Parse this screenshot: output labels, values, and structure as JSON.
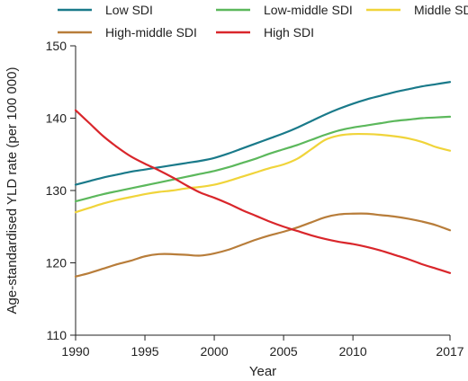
{
  "chart_data": {
    "type": "line",
    "xlabel": "Year",
    "ylabel": "Age-standardised YLD rate (per 100 000)",
    "xlim": [
      1990,
      2017
    ],
    "ylim": [
      110,
      150
    ],
    "xticks": [
      1990,
      1995,
      2000,
      2005,
      2010,
      2017
    ],
    "yticks": [
      110,
      120,
      130,
      140,
      150
    ],
    "grid": false,
    "legend_position": "top",
    "x": [
      1990,
      1991,
      1992,
      1993,
      1994,
      1995,
      1996,
      1997,
      1998,
      1999,
      2000,
      2001,
      2002,
      2003,
      2004,
      2005,
      2006,
      2007,
      2008,
      2009,
      2010,
      2011,
      2012,
      2013,
      2014,
      2015,
      2016,
      2017
    ],
    "series": [
      {
        "name": "Low SDI",
        "color": "#1a7a8a",
        "values": [
          130.8,
          131.3,
          131.8,
          132.2,
          132.6,
          132.9,
          133.2,
          133.5,
          133.8,
          134.1,
          134.5,
          135.1,
          135.8,
          136.5,
          137.2,
          137.9,
          138.7,
          139.6,
          140.5,
          141.3,
          142.0,
          142.6,
          143.1,
          143.6,
          144.0,
          144.4,
          144.7,
          145.0
        ]
      },
      {
        "name": "Low-middle SDI",
        "color": "#5cb85c",
        "values": [
          128.5,
          129.0,
          129.5,
          129.9,
          130.3,
          130.7,
          131.1,
          131.5,
          131.9,
          132.3,
          132.7,
          133.2,
          133.8,
          134.4,
          135.1,
          135.7,
          136.3,
          137.0,
          137.7,
          138.3,
          138.7,
          139.0,
          139.3,
          139.6,
          139.8,
          140.0,
          140.1,
          140.2
        ]
      },
      {
        "name": "Middle SDI",
        "color": "#f0d43a",
        "values": [
          127.0,
          127.6,
          128.2,
          128.7,
          129.1,
          129.5,
          129.8,
          130.0,
          130.3,
          130.5,
          130.8,
          131.3,
          131.9,
          132.5,
          133.1,
          133.6,
          134.4,
          135.7,
          137.0,
          137.6,
          137.8,
          137.8,
          137.7,
          137.5,
          137.2,
          136.7,
          136.0,
          135.5
        ]
      },
      {
        "name": "High-middle SDI",
        "color": "#b87d3a",
        "values": [
          118.1,
          118.6,
          119.2,
          119.8,
          120.3,
          120.9,
          121.2,
          121.2,
          121.1,
          121.0,
          121.3,
          121.8,
          122.5,
          123.2,
          123.8,
          124.3,
          124.9,
          125.6,
          126.3,
          126.7,
          126.8,
          126.8,
          126.6,
          126.4,
          126.1,
          125.7,
          125.2,
          124.5
        ]
      },
      {
        "name": "High SDI",
        "color": "#d9262b",
        "values": [
          141.1,
          139.3,
          137.5,
          136.0,
          134.7,
          133.7,
          132.8,
          131.8,
          130.7,
          129.7,
          129.0,
          128.2,
          127.3,
          126.5,
          125.7,
          125.0,
          124.4,
          123.8,
          123.3,
          122.9,
          122.6,
          122.2,
          121.7,
          121.1,
          120.5,
          119.8,
          119.2,
          118.6
        ]
      }
    ]
  }
}
